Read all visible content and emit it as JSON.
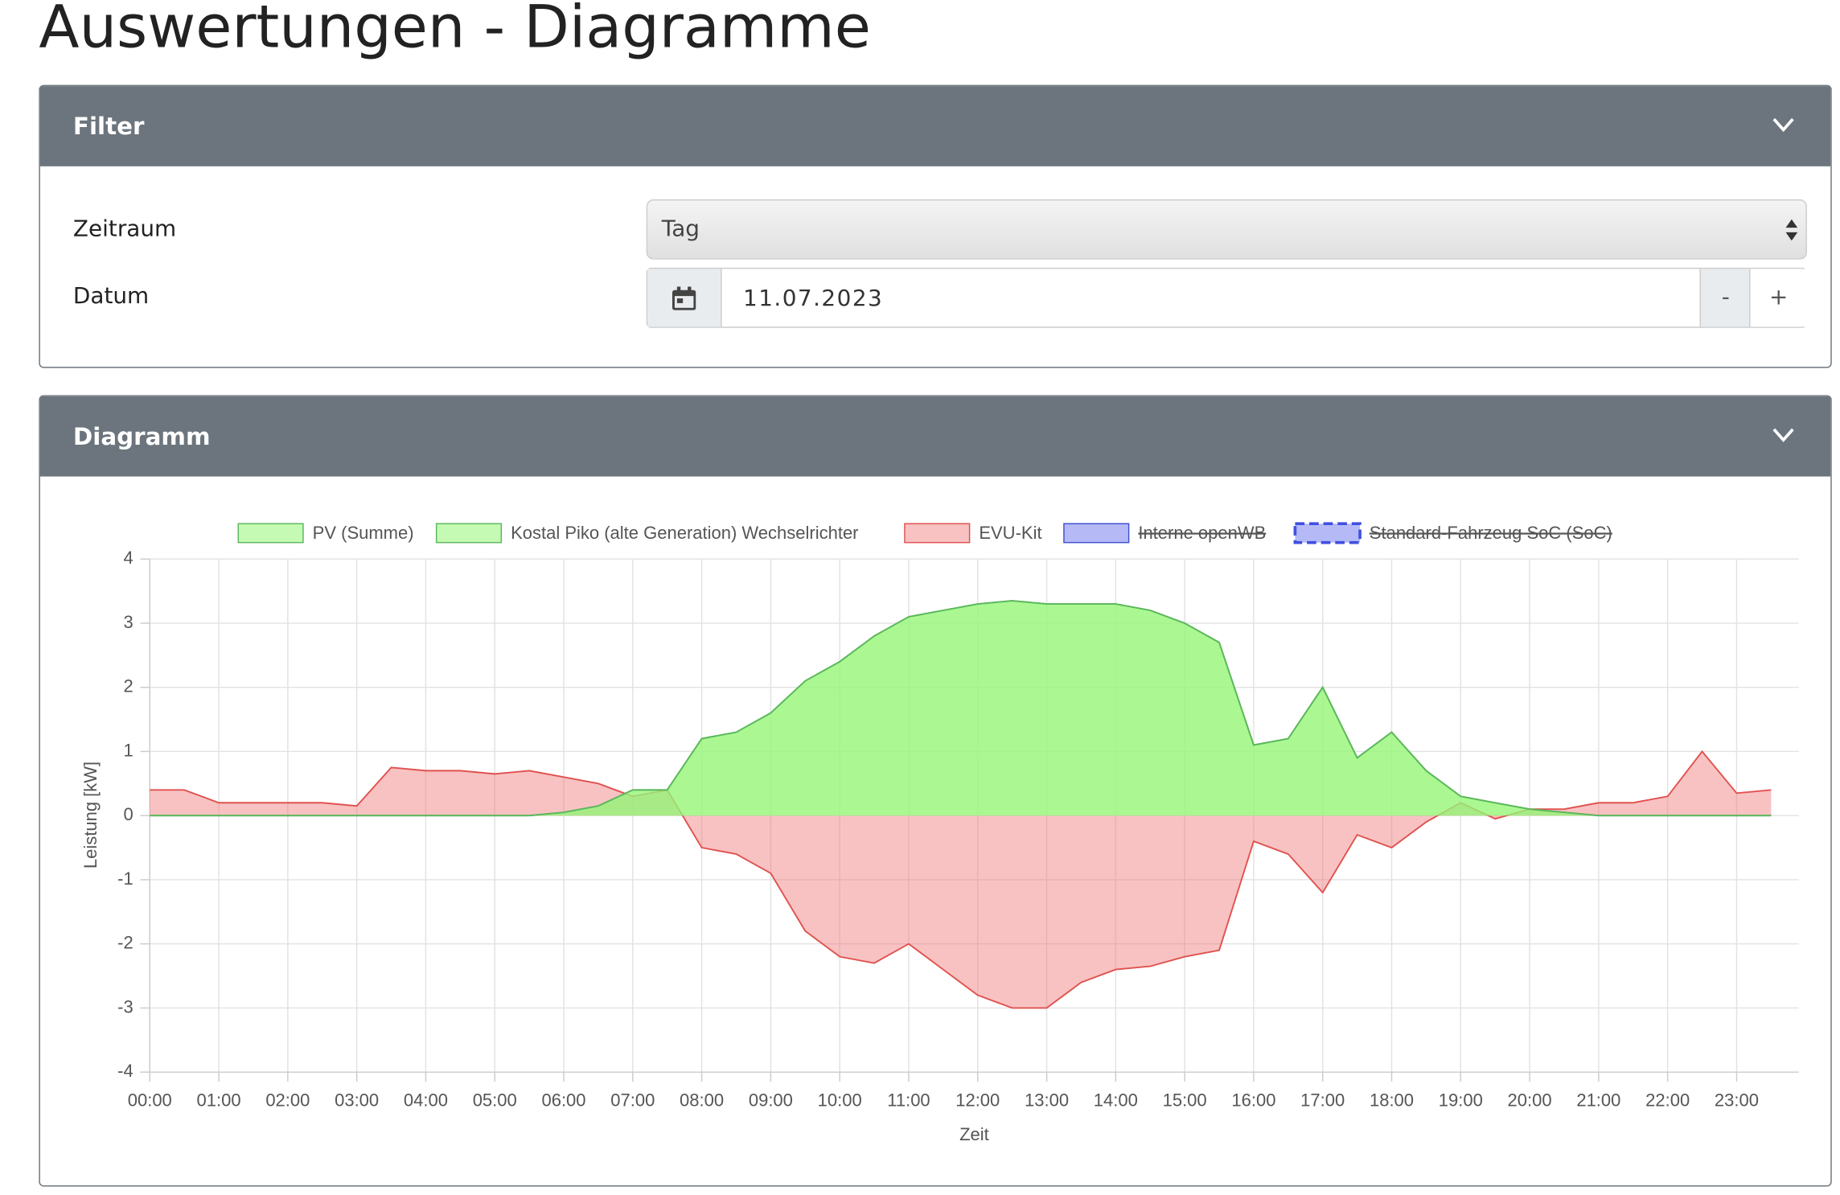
{
  "header": {
    "title": "Auswertungen - Diagramme"
  },
  "filter": {
    "title": "Filter",
    "period_label": "Zeitraum",
    "period_value": "Tag",
    "date_label": "Datum",
    "date_value": "11.07.2023",
    "minus": "-",
    "plus": "+"
  },
  "diagram": {
    "title": "Diagramm"
  },
  "chart_data": {
    "type": "area",
    "xlabel": "Zeit",
    "ylabel": "Leistung [kW]",
    "x": [
      0,
      0.5,
      1,
      1.5,
      2,
      2.5,
      3,
      3.5,
      4,
      4.5,
      5,
      5.5,
      6,
      6.5,
      7,
      7.5,
      8,
      8.5,
      9,
      9.5,
      10,
      10.5,
      11,
      11.5,
      12,
      12.5,
      13,
      13.5,
      14,
      14.5,
      15,
      15.5,
      16,
      16.5,
      17,
      17.5,
      18,
      18.5,
      19,
      19.5,
      20,
      20.5,
      21,
      21.5,
      22,
      22.5,
      23,
      23.5
    ],
    "xlim": [
      0,
      23.9
    ],
    "xticks": [
      {
        "value": 0,
        "label": "00:00"
      },
      {
        "value": 1,
        "label": "01:00"
      },
      {
        "value": 2,
        "label": "02:00"
      },
      {
        "value": 3,
        "label": "03:00"
      },
      {
        "value": 4,
        "label": "04:00"
      },
      {
        "value": 5,
        "label": "05:00"
      },
      {
        "value": 6,
        "label": "06:00"
      },
      {
        "value": 7,
        "label": "07:00"
      },
      {
        "value": 8,
        "label": "08:00"
      },
      {
        "value": 9,
        "label": "09:00"
      },
      {
        "value": 10,
        "label": "10:00"
      },
      {
        "value": 11,
        "label": "11:00"
      },
      {
        "value": 12,
        "label": "12:00"
      },
      {
        "value": 13,
        "label": "13:00"
      },
      {
        "value": 14,
        "label": "14:00"
      },
      {
        "value": 15,
        "label": "15:00"
      },
      {
        "value": 16,
        "label": "16:00"
      },
      {
        "value": 17,
        "label": "17:00"
      },
      {
        "value": 18,
        "label": "18:00"
      },
      {
        "value": 19,
        "label": "19:00"
      },
      {
        "value": 20,
        "label": "20:00"
      },
      {
        "value": 21,
        "label": "21:00"
      },
      {
        "value": 22,
        "label": "22:00"
      },
      {
        "value": 23,
        "label": "23:00"
      }
    ],
    "ylim": [
      -4,
      4
    ],
    "yticks": [
      -4,
      -3,
      -2,
      -1,
      0,
      1,
      2,
      3,
      4
    ],
    "grid": true,
    "series": [
      {
        "name": "EVU-Kit",
        "color": "#e0524f",
        "fill": "rgba(240,120,120,0.45)",
        "values": [
          0.4,
          0.4,
          0.2,
          0.2,
          0.2,
          0.2,
          0.15,
          0.75,
          0.7,
          0.7,
          0.65,
          0.7,
          0.6,
          0.5,
          0.3,
          0.4,
          -0.5,
          -0.6,
          -0.9,
          -1.8,
          -2.2,
          -2.3,
          -2.0,
          -2.4,
          -2.8,
          -3.0,
          -3.0,
          -2.6,
          -2.4,
          -2.35,
          -2.2,
          -2.1,
          -0.4,
          -0.6,
          -1.2,
          -0.3,
          -0.5,
          -0.1,
          0.2,
          -0.05,
          0.1,
          0.1,
          0.2,
          0.2,
          0.3,
          1.0,
          0.35,
          0.4
        ]
      },
      {
        "name": "PV (Summe)",
        "color": "#5cb85c",
        "fill": "rgba(150,245,120,0.55)",
        "values": [
          0,
          0,
          0,
          0,
          0,
          0,
          0,
          0,
          0,
          0,
          0,
          0,
          0.05,
          0.15,
          0.4,
          0.4,
          1.2,
          1.3,
          1.6,
          2.1,
          2.4,
          2.8,
          3.1,
          3.2,
          3.3,
          3.35,
          3.3,
          3.3,
          3.3,
          3.2,
          3.0,
          2.7,
          1.1,
          1.2,
          2.0,
          0.9,
          1.3,
          0.7,
          0.3,
          0.2,
          0.1,
          0.05,
          0,
          0,
          0,
          0,
          0,
          0
        ]
      },
      {
        "name": "Kostal Piko (alte Generation) Wechselrichter",
        "color": "#5cb85c",
        "fill": "rgba(150,245,120,0.55)",
        "values": [
          0,
          0,
          0,
          0,
          0,
          0,
          0,
          0,
          0,
          0,
          0,
          0,
          0.05,
          0.15,
          0.4,
          0.4,
          1.2,
          1.3,
          1.6,
          2.1,
          2.4,
          2.8,
          3.1,
          3.2,
          3.3,
          3.35,
          3.3,
          3.3,
          3.3,
          3.2,
          3.0,
          2.7,
          1.1,
          1.2,
          2.0,
          0.9,
          1.3,
          0.7,
          0.3,
          0.2,
          0.1,
          0.05,
          0,
          0,
          0,
          0,
          0,
          0
        ]
      },
      {
        "name": "Interne openWB",
        "color": "#4050d0",
        "fill": "rgba(120,130,240,0.55)",
        "hidden": true
      },
      {
        "name": "Standard-Fahrzeug SoC (SoC)",
        "color": "#4050e0",
        "fill": "rgba(120,130,240,0.55)",
        "hidden": true,
        "dashed": true
      }
    ],
    "legend_order": [
      1,
      2,
      0,
      3,
      4
    ]
  }
}
